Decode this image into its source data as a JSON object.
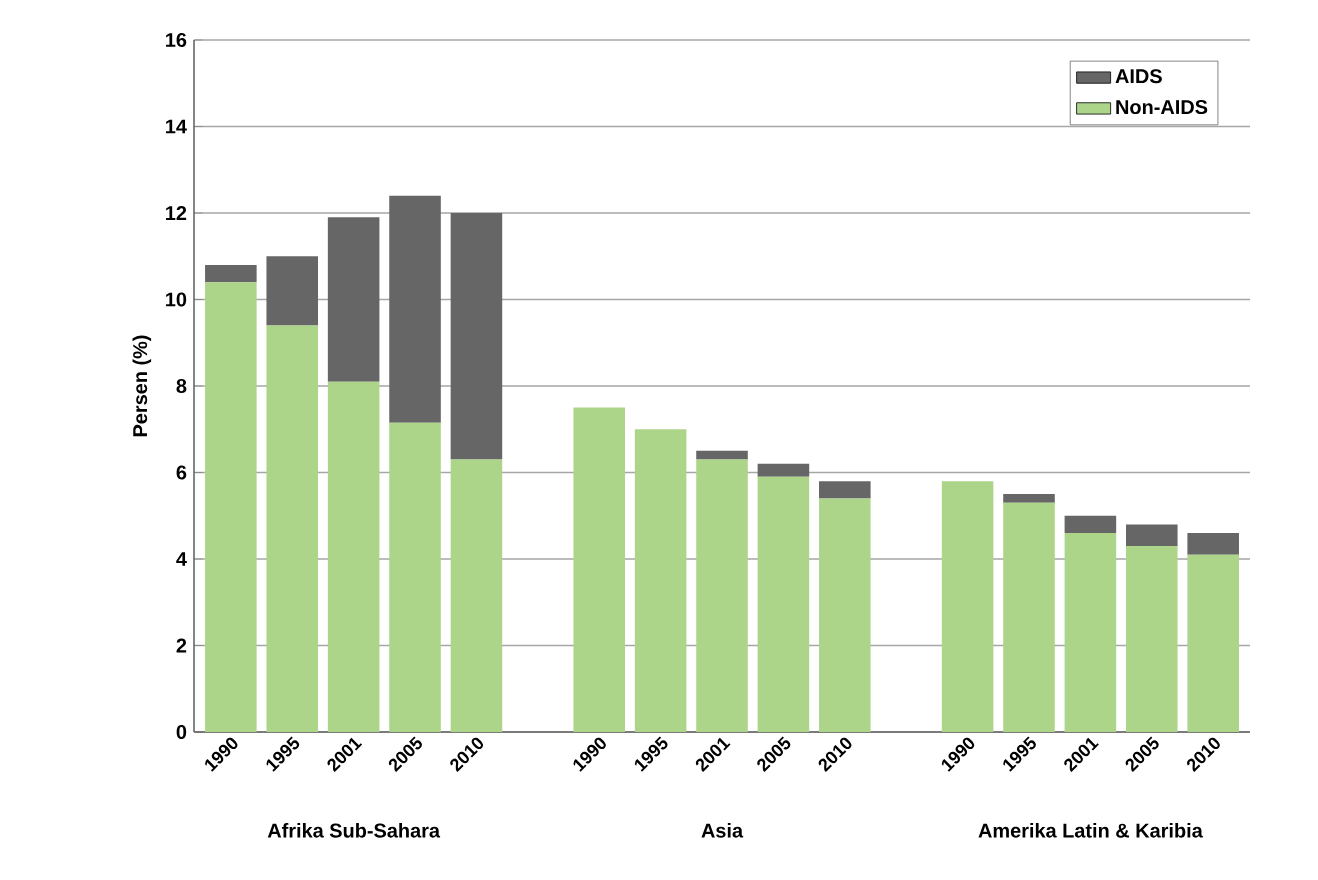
{
  "chart_data": {
    "type": "bar",
    "stacked": true,
    "ylabel": "Persen (%)",
    "categories": [
      "1990",
      "1995",
      "2001",
      "2005",
      "2010",
      null,
      "1990",
      "1995",
      "2001",
      "2005",
      "2010",
      null,
      "1990",
      "1995",
      "2001",
      "2005",
      "2010"
    ],
    "series": [
      {
        "name": "Non-AIDS",
        "color": "#acd58a",
        "values": [
          10.4,
          9.4,
          8.1,
          7.15,
          6.3,
          null,
          7.5,
          7.0,
          6.3,
          5.9,
          5.4,
          null,
          5.8,
          5.3,
          4.6,
          4.3,
          4.1
        ]
      },
      {
        "name": "AIDS",
        "color": "#666666",
        "values": [
          0.4,
          1.6,
          3.8,
          5.25,
          5.7,
          null,
          0,
          0,
          0.2,
          0.3,
          0.4,
          null,
          0,
          0.2,
          0.4,
          0.5,
          0.5
        ]
      }
    ],
    "ylim": [
      0,
      16
    ],
    "yticks": [
      0,
      2,
      4,
      6,
      8,
      10,
      12,
      14,
      16
    ],
    "grid": "y",
    "legend": "top right",
    "annotations": [
      "Afrika Sub-Sahara",
      "Asia",
      "Amerika Latin & Karibia"
    ]
  }
}
